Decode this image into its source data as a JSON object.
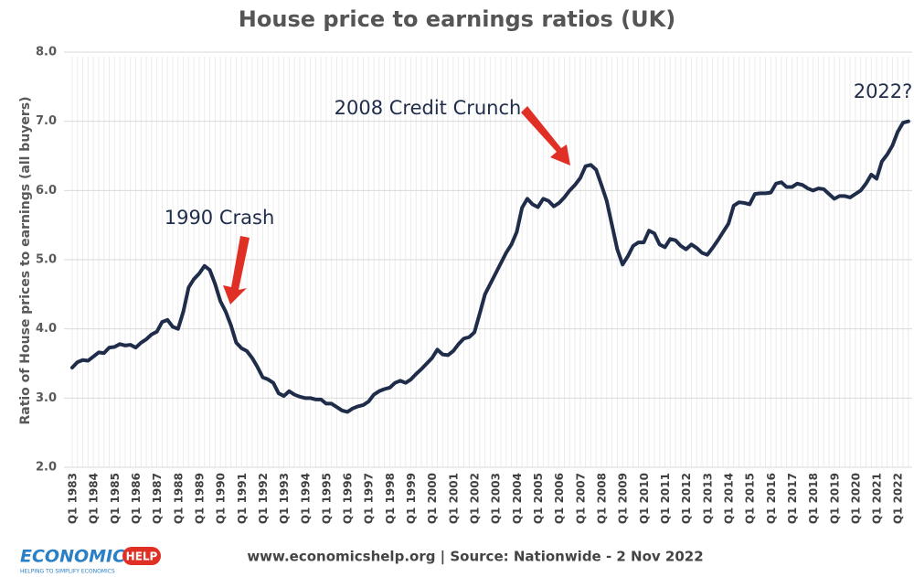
{
  "chart_data": {
    "type": "line",
    "title": "House price to earnings ratios (UK)",
    "y_label": "Ratio of House prices to earnings (all buyers)",
    "footer": "www.economicshelp.org | Source: Nationwide - 2 Nov 2022",
    "logo": {
      "text": "ECONOMICS",
      "badge": "HELP",
      "tagline": "HELPING TO SIMPLIFY ECONOMICS"
    },
    "annotations": [
      "1990 Crash",
      "2008 Credit Crunch",
      "2022?"
    ],
    "color": "#1f2d4a",
    "grid": true,
    "ylim": [
      2,
      8
    ],
    "yticks": [
      {
        "value": 2,
        "label": "2.0"
      },
      {
        "value": 3,
        "label": "3.0"
      },
      {
        "value": 4,
        "label": "4.0"
      },
      {
        "value": 5,
        "label": "5.0"
      },
      {
        "value": 6,
        "label": "6.0"
      },
      {
        "value": 7,
        "label": "7.0"
      },
      {
        "value": 8,
        "label": "8.0"
      }
    ],
    "categories": [
      "Q1 1983",
      null,
      null,
      null,
      "Q1 1984",
      null,
      null,
      null,
      "Q1 1985",
      null,
      null,
      null,
      "Q1 1986",
      null,
      null,
      null,
      "Q1 1987",
      null,
      null,
      null,
      "Q1 1988",
      null,
      null,
      null,
      "Q1 1989",
      null,
      null,
      null,
      "Q1 1990",
      null,
      null,
      null,
      "Q1 1991",
      null,
      null,
      null,
      "Q1 1992",
      null,
      null,
      null,
      "Q1 1993",
      null,
      null,
      null,
      "Q1 1994",
      null,
      null,
      null,
      "Q1 1995",
      null,
      null,
      null,
      "Q1 1996",
      null,
      null,
      null,
      "Q1 1997",
      null,
      null,
      null,
      "Q1 1998",
      null,
      null,
      null,
      "Q1 1999",
      null,
      null,
      null,
      "Q1 2000",
      null,
      null,
      null,
      "Q1 2001",
      null,
      null,
      null,
      "Q1 2002",
      null,
      null,
      null,
      "Q1 2003",
      null,
      null,
      null,
      "Q1 2004",
      null,
      null,
      null,
      "Q1 2005",
      null,
      null,
      null,
      "Q1 2006",
      null,
      null,
      null,
      "Q1 2007",
      null,
      null,
      null,
      "Q1 2008",
      null,
      null,
      null,
      "Q1 2009",
      null,
      null,
      null,
      "Q1 2010",
      null,
      null,
      null,
      "Q1 2011",
      null,
      null,
      null,
      "Q1 2012",
      null,
      null,
      null,
      "Q1 2013",
      null,
      null,
      null,
      "Q1 2014",
      null,
      null,
      null,
      "Q1 2015",
      null,
      null,
      null,
      "Q1 2016",
      null,
      null,
      null,
      "Q1 2017",
      null,
      null,
      null,
      "Q1 2018",
      null,
      null,
      null,
      "Q1 2019",
      null,
      null,
      null,
      "Q1 2020",
      null,
      null,
      null,
      "Q1 2021",
      null,
      null,
      null,
      "Q1 2022",
      null,
      null
    ],
    "values": [
      3.44,
      3.52,
      3.55,
      3.54,
      3.6,
      3.66,
      3.65,
      3.73,
      3.74,
      3.78,
      3.76,
      3.77,
      3.73,
      3.8,
      3.85,
      3.92,
      3.96,
      4.1,
      4.13,
      4.03,
      4.0,
      4.25,
      4.6,
      4.72,
      4.8,
      4.91,
      4.85,
      4.65,
      4.4,
      4.25,
      4.05,
      3.8,
      3.72,
      3.68,
      3.58,
      3.45,
      3.3,
      3.27,
      3.22,
      3.07,
      3.03,
      3.1,
      3.05,
      3.02,
      3.0,
      3.0,
      2.98,
      2.98,
      2.92,
      2.92,
      2.87,
      2.82,
      2.8,
      2.85,
      2.88,
      2.9,
      2.95,
      3.05,
      3.1,
      3.13,
      3.15,
      3.22,
      3.25,
      3.22,
      3.27,
      3.35,
      3.42,
      3.5,
      3.58,
      3.7,
      3.63,
      3.62,
      3.68,
      3.78,
      3.86,
      3.88,
      3.95,
      4.22,
      4.5,
      4.65,
      4.8,
      4.95,
      5.1,
      5.22,
      5.4,
      5.75,
      5.88,
      5.8,
      5.76,
      5.88,
      5.85,
      5.77,
      5.82,
      5.9,
      6.0,
      6.08,
      6.18,
      6.35,
      6.37,
      6.3,
      6.08,
      5.85,
      5.5,
      5.15,
      4.93,
      5.05,
      5.2,
      5.25,
      5.25,
      5.42,
      5.38,
      5.22,
      5.18,
      5.3,
      5.28,
      5.2,
      5.15,
      5.22,
      5.17,
      5.1,
      5.07,
      5.17,
      5.28,
      5.4,
      5.52,
      5.78,
      5.83,
      5.82,
      5.8,
      5.95,
      5.96,
      5.96,
      5.97,
      6.1,
      6.12,
      6.05,
      6.05,
      6.1,
      6.08,
      6.03,
      6.0,
      6.03,
      6.02,
      5.95,
      5.88,
      5.92,
      5.92,
      5.9,
      5.95,
      6.0,
      6.1,
      6.23,
      6.17,
      6.42,
      6.52,
      6.65,
      6.85,
      6.98,
      7.0
    ]
  }
}
